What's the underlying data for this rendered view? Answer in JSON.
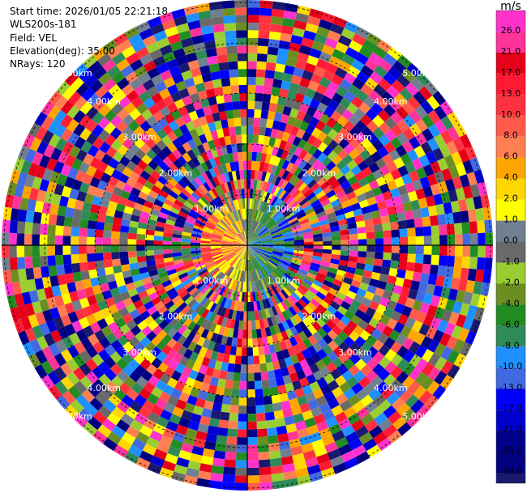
{
  "info": {
    "start_time": "Start time: 2026/01/05 22:21:18",
    "station": "WLS200s-181",
    "field": "Field: VEL",
    "elevation": "Elevation(deg): 35.00",
    "nrays": "NRays: 120"
  },
  "colorbar": {
    "unit": "m/s",
    "labels": [
      "26.0",
      "21.0",
      "17.0",
      "13.0",
      "10.0",
      "8.0",
      "6.0",
      "4.0",
      "2.0",
      "1.0",
      "0.0",
      "-1.0",
      "-2.0",
      "-4.0",
      "-6.0",
      "-8.0",
      "-10.0",
      "-13.0",
      "-17.0",
      "-21.0",
      "-26.0",
      "-30.0"
    ],
    "colors": [
      "#ff33cc",
      "#ff3399",
      "#e6001a",
      "#ff1a33",
      "#ff3340",
      "#ff5a4a",
      "#ff7f50",
      "#ffa500",
      "#ffd700",
      "#ffff00",
      "#708090",
      "#696969",
      "#9acd32",
      "#6b8e23",
      "#228b22",
      "#2e8b57",
      "#1e90ff",
      "#4169e1",
      "#0000ff",
      "#0000cd",
      "#00008b",
      "#000080",
      "#191970"
    ]
  },
  "chart_data": {
    "type": "heatmap",
    "projection": "polar PPI",
    "field": "VEL",
    "unit": "m/s",
    "elevation_deg": 35.0,
    "n_rays": 120,
    "range_ring_labels": [
      "1.00km",
      "2.00km",
      "3.00km",
      "4.00km",
      "5.00km"
    ],
    "color_scale_min": -30.0,
    "color_scale_max": 26.0,
    "note_values": "per-gate velocities not individually readable; rendered as noise texture"
  }
}
